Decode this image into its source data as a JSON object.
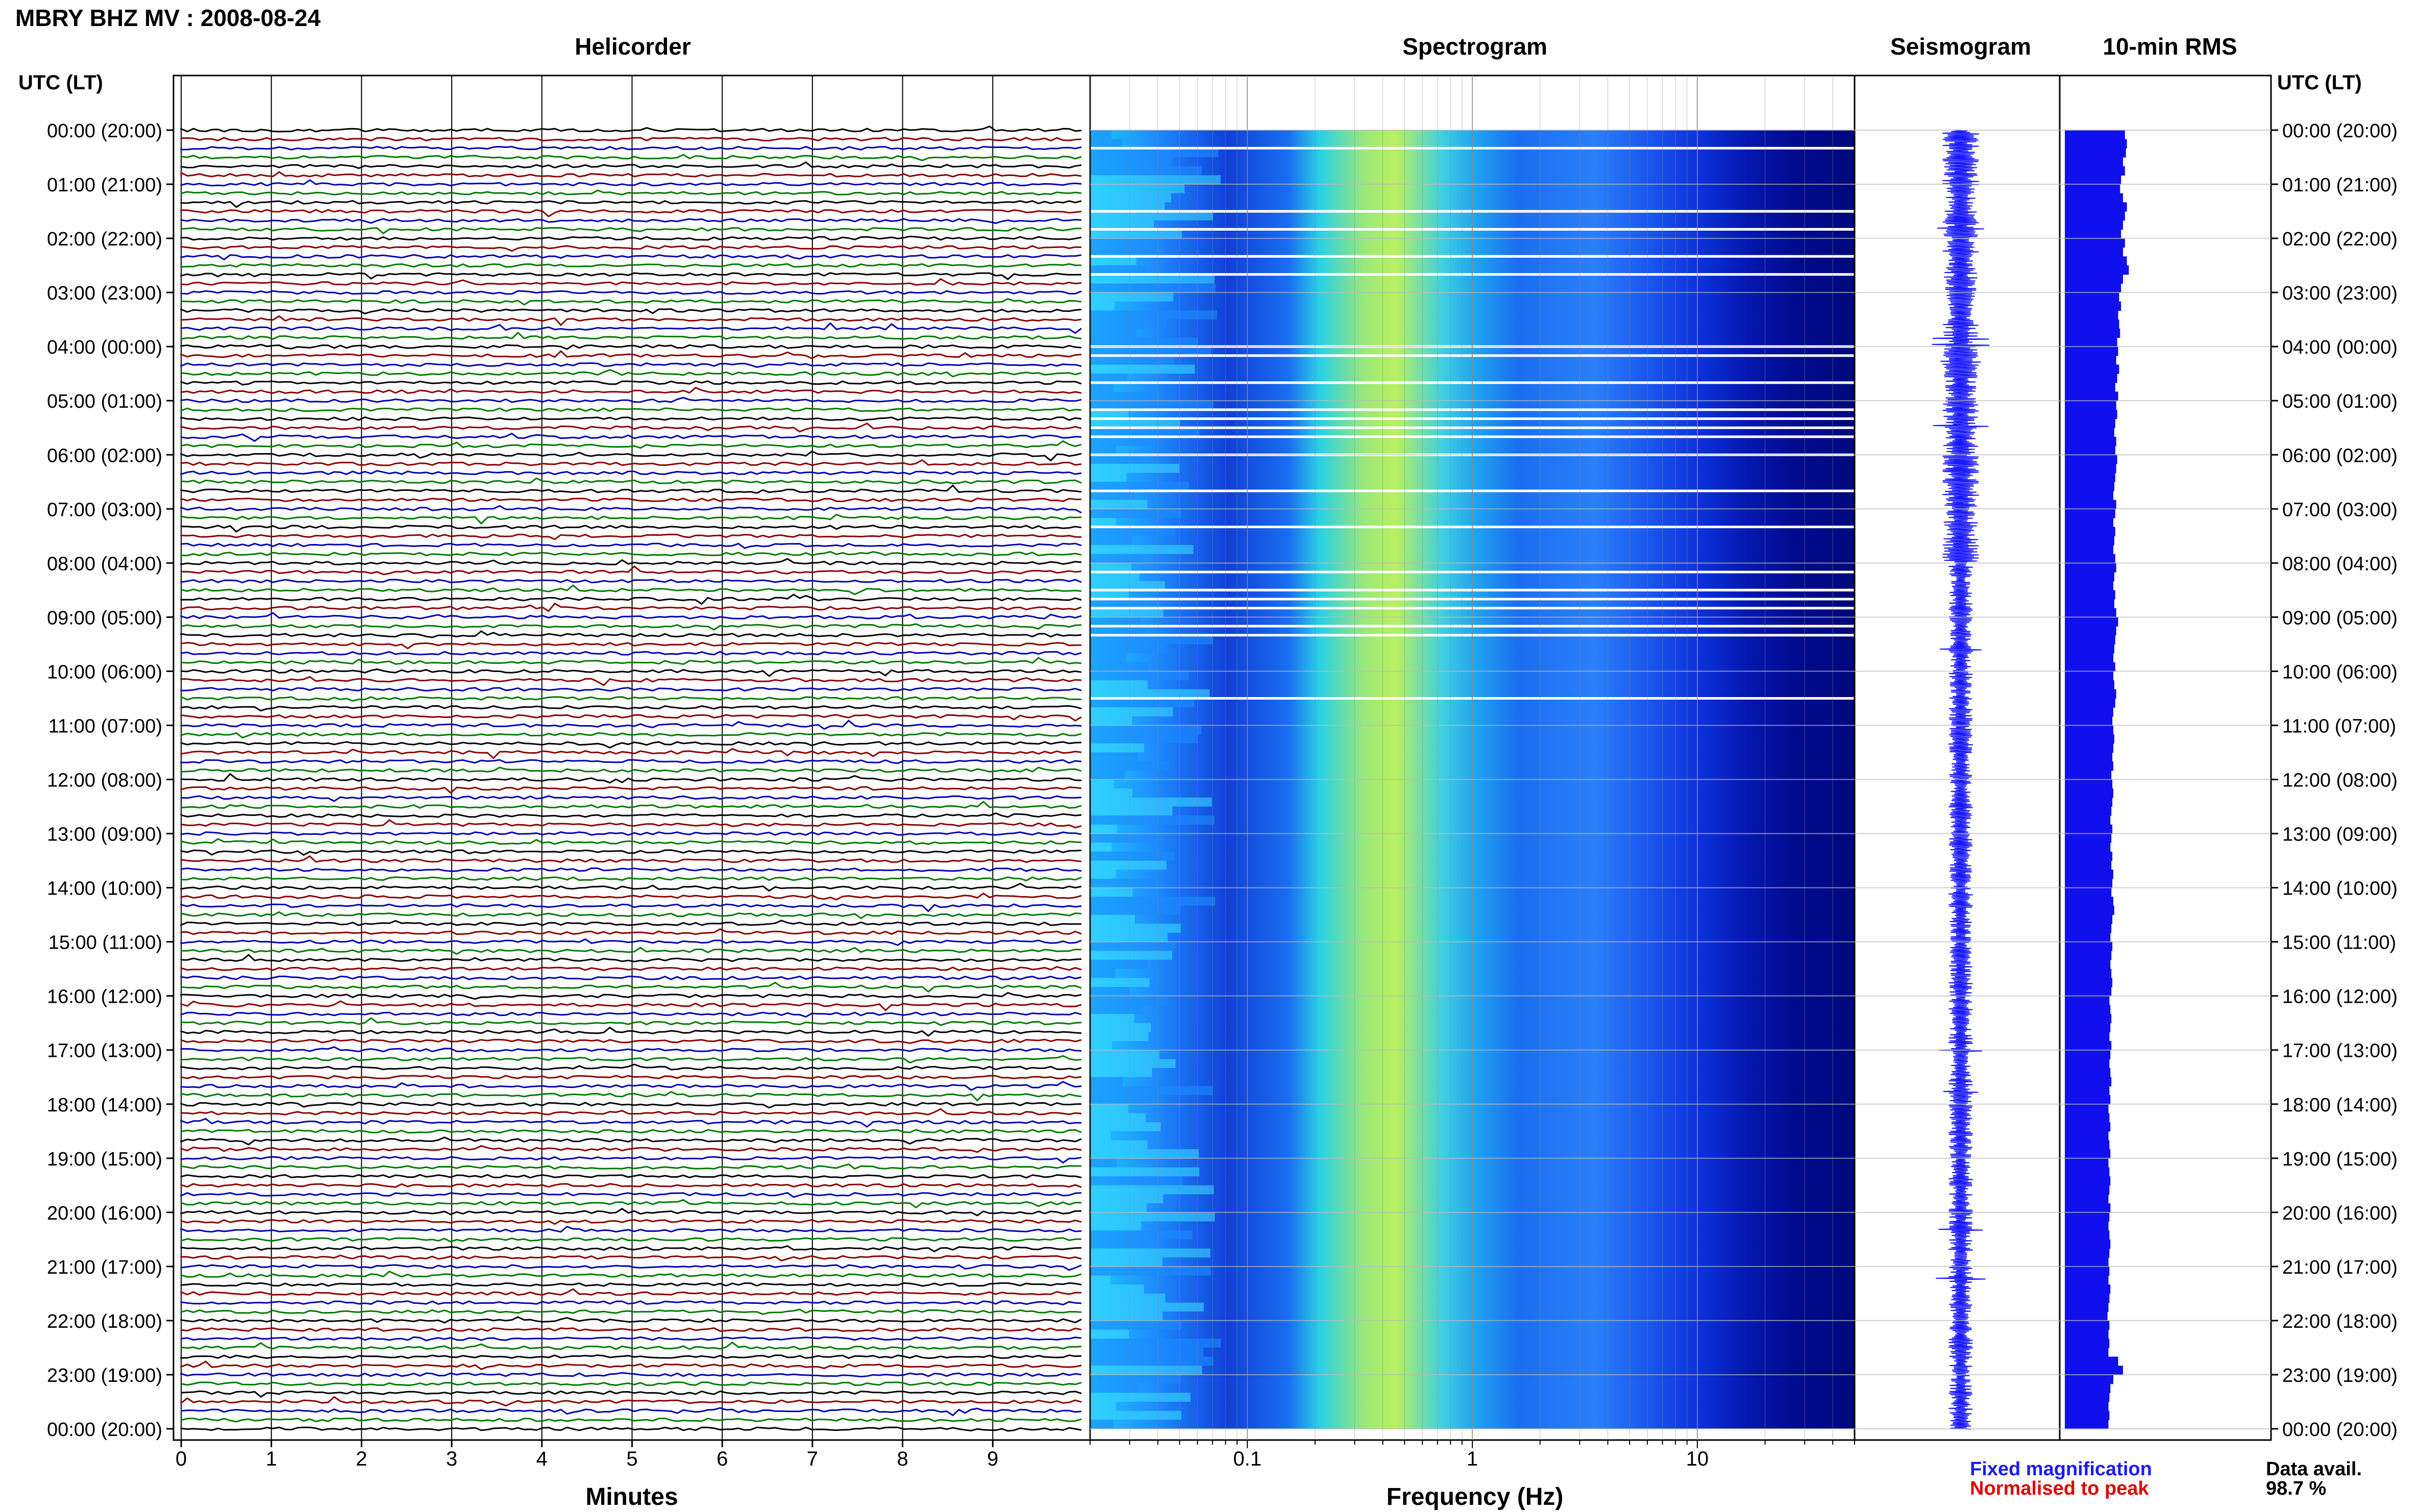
{
  "header": {
    "title": "MBRY BHZ MV : 2008-08-24"
  },
  "panels": {
    "helicorder": "Helicorder",
    "spectrogram": "Spectrogram",
    "seismogram": "Seismogram",
    "rms": "10-min RMS"
  },
  "time_axis_label_left": "UTC (LT)",
  "time_axis_label_right": "UTC (LT)",
  "footer": {
    "minutes_label": "Minutes",
    "frequency_label": "Frequency (Hz)",
    "legend_fixed": "Fixed magnification",
    "legend_normalised": "Normalised to peak",
    "data_avail_label": "Data avail.",
    "data_avail_value": "98.7 %"
  },
  "colors": {
    "trace_cycle": [
      "#000000",
      "#8b0000",
      "#0000b4",
      "#007a00"
    ],
    "seismogram": "#1a1aff",
    "rms_bar": "#1010ee",
    "legend_fixed": "#1a1aff",
    "legend_normalised": "#e00000",
    "spectrogram_low": "#00008b",
    "spectrogram_mid": "#00c8ff",
    "spectrogram_high": "#c8ff50"
  },
  "chart_data": {
    "type": "heatmap",
    "title": "MBRY BHZ MV : 2008-08-24",
    "time_ticks": [
      "00:00 (20:00)",
      "01:00 (21:00)",
      "02:00 (22:00)",
      "03:00 (23:00)",
      "04:00 (00:00)",
      "05:00 (01:00)",
      "06:00 (02:00)",
      "07:00 (03:00)",
      "08:00 (04:00)",
      "09:00 (05:00)",
      "10:00 (06:00)",
      "11:00 (07:00)",
      "12:00 (08:00)",
      "13:00 (09:00)",
      "14:00 (10:00)",
      "15:00 (11:00)",
      "16:00 (12:00)",
      "17:00 (13:00)",
      "18:00 (14:00)",
      "19:00 (15:00)",
      "20:00 (16:00)",
      "21:00 (17:00)",
      "22:00 (18:00)",
      "23:00 (19:00)",
      "00:00 (20:00)"
    ],
    "helicorder": {
      "xlabel": "Minutes",
      "xticks": [
        "0",
        "1",
        "2",
        "3",
        "4",
        "5",
        "6",
        "7",
        "8",
        "9"
      ],
      "xlim": [
        0,
        10
      ],
      "lines_per_hour": 6
    },
    "spectrogram": {
      "xlabel": "Frequency (Hz)",
      "xscale": "log",
      "xticks": [
        "0.1",
        "1",
        "10"
      ],
      "xlim": [
        0.02,
        50
      ]
    },
    "rms": {
      "values": [
        0.62,
        0.64,
        0.63,
        0.6,
        0.62,
        0.58,
        0.57,
        0.6,
        0.64,
        0.62,
        0.6,
        0.58,
        0.62,
        0.6,
        0.64,
        0.66,
        0.6,
        0.58,
        0.56,
        0.58,
        0.55,
        0.56,
        0.57,
        0.54,
        0.55,
        0.53,
        0.56,
        0.54,
        0.52,
        0.55,
        0.53,
        0.54,
        0.52,
        0.51,
        0.53,
        0.52,
        0.54,
        0.53,
        0.52,
        0.51,
        0.5,
        0.53,
        0.52,
        0.5,
        0.52,
        0.51,
        0.5,
        0.52,
        0.53,
        0.51,
        0.5,
        0.52,
        0.51,
        0.53,
        0.55,
        0.53,
        0.52,
        0.51,
        0.5,
        0.52,
        0.5,
        0.51,
        0.53,
        0.52,
        0.5,
        0.49,
        0.5,
        0.51,
        0.5,
        0.49,
        0.5,
        0.48,
        0.49,
        0.5,
        0.49,
        0.48,
        0.47,
        0.49,
        0.48,
        0.47,
        0.49,
        0.48,
        0.5,
        0.49,
        0.48,
        0.5,
        0.51,
        0.49,
        0.48,
        0.47,
        0.49,
        0.48,
        0.47,
        0.48,
        0.49,
        0.48,
        0.46,
        0.47,
        0.48,
        0.47,
        0.46,
        0.48,
        0.47,
        0.46,
        0.47,
        0.48,
        0.46,
        0.47,
        0.45,
        0.46,
        0.47,
        0.45,
        0.46,
        0.47,
        0.45,
        0.46,
        0.47,
        0.46,
        0.45,
        0.47,
        0.46,
        0.45,
        0.46,
        0.47,
        0.46,
        0.45,
        0.46,
        0.45,
        0.47,
        0.46,
        0.45,
        0.44,
        0.46,
        0.45,
        0.46,
        0.45,
        0.55,
        0.6,
        0.5,
        0.47,
        0.46,
        0.45,
        0.46,
        0.45
      ]
    },
    "legend": [
      "Fixed magnification",
      "Normalised to peak"
    ]
  }
}
